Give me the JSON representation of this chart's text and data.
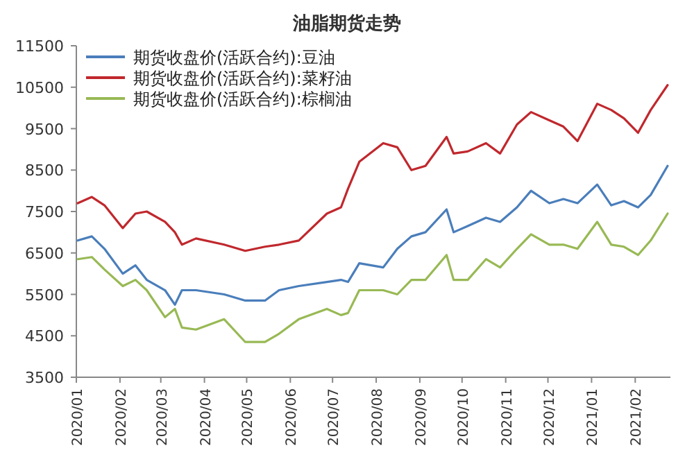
{
  "chart_data": {
    "type": "line",
    "title": "油脂期货走势",
    "x": [
      "2020-01-02",
      "2020-01-12",
      "2020-01-21",
      "2020-02-03",
      "2020-02-12",
      "2020-02-20",
      "2020-03-04",
      "2020-03-11",
      "2020-03-16",
      "2020-03-26",
      "2020-04-15",
      "2020-04-30",
      "2020-05-14",
      "2020-05-24",
      "2020-06-07",
      "2020-06-27",
      "2020-07-07",
      "2020-07-12",
      "2020-07-20",
      "2020-08-06",
      "2020-08-16",
      "2020-08-26",
      "2020-09-05",
      "2020-09-20",
      "2020-09-25",
      "2020-10-05",
      "2020-10-18",
      "2020-10-28",
      "2020-11-09",
      "2020-11-19",
      "2020-12-02",
      "2020-12-12",
      "2020-12-22",
      "2021-01-05",
      "2021-01-15",
      "2021-01-24",
      "2021-02-03",
      "2021-02-12",
      "2021-02-24"
    ],
    "series": [
      {
        "name": "期货收盘价(活跃合约):豆油",
        "color": "#4a7ebb",
        "values": [
          6800,
          6900,
          6600,
          6000,
          6200,
          5850,
          5600,
          5250,
          5600,
          5600,
          5500,
          5350,
          5350,
          5600,
          5700,
          5800,
          5850,
          5800,
          6250,
          6150,
          6600,
          6900,
          7000,
          7550,
          7000,
          7150,
          7350,
          7250,
          7600,
          8000,
          7700,
          7800,
          7700,
          8150,
          7650,
          7750,
          7600,
          7900,
          8600
        ]
      },
      {
        "name": "期货收盘价(活跃合约):菜籽油",
        "color": "#c0282d",
        "values": [
          7700,
          7850,
          7650,
          7100,
          7450,
          7500,
          7250,
          7000,
          6700,
          6850,
          6700,
          6550,
          6650,
          6700,
          6800,
          7450,
          7600,
          8050,
          8700,
          9150,
          9050,
          8500,
          8600,
          9300,
          8900,
          8950,
          9150,
          8900,
          9600,
          9900,
          9700,
          9550,
          9200,
          10100,
          9950,
          9750,
          9400,
          9950,
          10550
        ]
      },
      {
        "name": "期货收盘价(活跃合约):棕榈油",
        "color": "#98b954",
        "values": [
          6350,
          6400,
          6100,
          5700,
          5850,
          5600,
          4950,
          5150,
          4700,
          4650,
          4900,
          4350,
          4350,
          4550,
          4900,
          5150,
          5000,
          5050,
          5600,
          5600,
          5500,
          5850,
          5850,
          6450,
          5850,
          5850,
          6350,
          6150,
          6600,
          6950,
          6700,
          6700,
          6600,
          7250,
          6700,
          6650,
          6450,
          6800,
          7450
        ]
      }
    ],
    "xlim": [
      "2020-01-01",
      "2021-02-26"
    ],
    "xticks": [
      {
        "value": "2020-01-01",
        "label": "2020/01"
      },
      {
        "value": "2020-02-01",
        "label": "2020/02"
      },
      {
        "value": "2020-03-01",
        "label": "2020/03"
      },
      {
        "value": "2020-04-01",
        "label": "2020/04"
      },
      {
        "value": "2020-05-01",
        "label": "2020/05"
      },
      {
        "value": "2020-06-01",
        "label": "2020/06"
      },
      {
        "value": "2020-07-01",
        "label": "2020/07"
      },
      {
        "value": "2020-08-01",
        "label": "2020/08"
      },
      {
        "value": "2020-09-01",
        "label": "2020/09"
      },
      {
        "value": "2020-10-01",
        "label": "2020/10"
      },
      {
        "value": "2020-11-01",
        "label": "2020/11"
      },
      {
        "value": "2020-12-01",
        "label": "2020/12"
      },
      {
        "value": "2021-01-01",
        "label": "2021/01"
      },
      {
        "value": "2021-02-01",
        "label": "2021/02"
      }
    ],
    "ylim": [
      3500,
      11500
    ],
    "yticks": [
      3500,
      4500,
      5500,
      6500,
      7500,
      8500,
      9500,
      10500,
      11500
    ],
    "legend": "top left",
    "grid": false,
    "marker": "none",
    "line_style": "solid"
  }
}
